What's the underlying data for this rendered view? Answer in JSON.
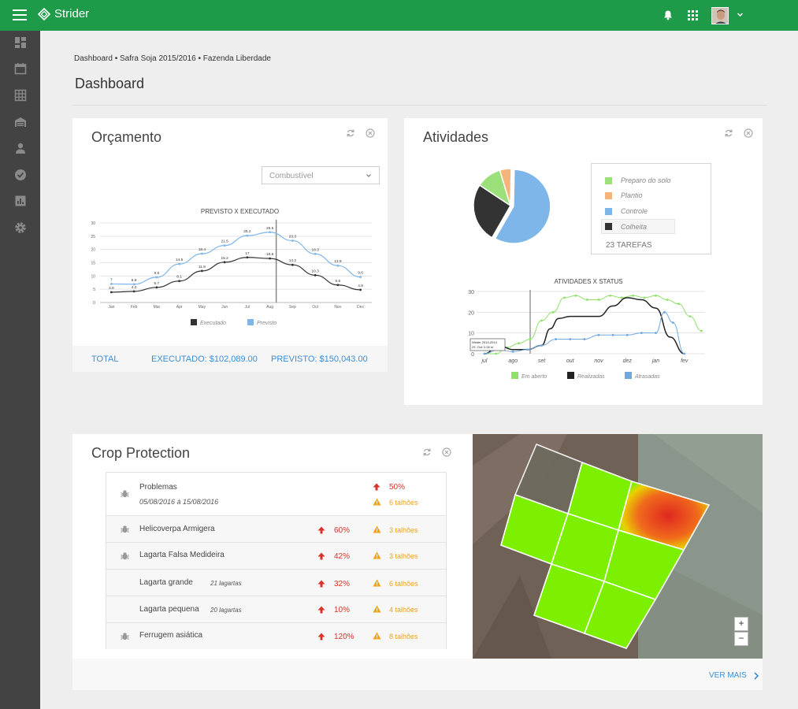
{
  "app": {
    "name": "Strider"
  },
  "breadcrumb": "Dashboard • Safra Soja 2015/2016 • Fazenda Liberdade",
  "page_title": "Dashboard",
  "orcamento": {
    "title": "Orçamento",
    "select_value": "Combustível",
    "total_label": "TOTAL",
    "executado": "EXECUTADO: $102,089.00",
    "previsto": "PREVISTO: $150,043.00",
    "colors": {
      "executado": "#333333",
      "previsto": "#7eb6ea"
    }
  },
  "atividades": {
    "title": "Atividades",
    "legend": [
      {
        "label": "Preparo do solo",
        "color": "#9be07a"
      },
      {
        "label": "Plantio",
        "color": "#f5b57a"
      },
      {
        "label": "Controle",
        "color": "#7eb6ea"
      },
      {
        "label": "Colheita",
        "color": "#333333"
      }
    ],
    "tarefas": "23 TAREFAS",
    "tooltip": [
      "Winter 2013-2014",
      "29. Oct: 0.00 m"
    ]
  },
  "chart_data": [
    {
      "type": "line",
      "title": "PREVISTO X EXECUTADO",
      "categories": [
        "Jan",
        "Feb",
        "Mar",
        "Apr",
        "May",
        "Jun",
        "Jul",
        "Aug",
        "Sep",
        "Oct",
        "Nov",
        "Dec"
      ],
      "series": [
        {
          "name": "Executado",
          "values": [
            3.9,
            4.2,
            5.7,
            8.1,
            11.9,
            15.2,
            17,
            16.6,
            14.2,
            10.3,
            6.6,
            4.8
          ],
          "labels": [
            "3.9",
            "4.2",
            "5.7",
            "8.1",
            "11.9",
            "15.2",
            "17",
            "16.6",
            "14.2",
            "10.3",
            "6.6",
            "4.8"
          ]
        },
        {
          "name": "Previsto",
          "values": [
            7,
            6.9,
            9.5,
            14.5,
            18.4,
            21.5,
            25.2,
            26.5,
            23.3,
            18.3,
            13.9,
            9.6
          ],
          "labels": [
            "7",
            "6.9",
            "9.5",
            "14.5",
            "18.4",
            "21.5",
            "25.2",
            "26.5",
            "23.3",
            "18.3",
            "13.9",
            "9.6"
          ]
        }
      ],
      "yticks": [
        "0",
        "5",
        "10",
        "15",
        "20",
        "25",
        "30"
      ],
      "ylim": [
        0,
        30
      ],
      "grid": true,
      "legend": "bottom-center"
    },
    {
      "type": "pie",
      "slices": [
        {
          "label": "Controle",
          "value": 58
        },
        {
          "label": "Colheita",
          "value": 26
        },
        {
          "label": "Preparo do solo",
          "value": 11
        },
        {
          "label": "Plantio",
          "value": 5
        }
      ]
    },
    {
      "type": "line",
      "title": "ATIVIDADES X STATUS",
      "categories": [
        "jul",
        "ago",
        "set",
        "out",
        "nov",
        "dez",
        "jan",
        "fev"
      ],
      "yticks": [
        "0",
        "10",
        "20",
        "30"
      ],
      "ylim": [
        0,
        30
      ],
      "series": [
        {
          "name": "Em aberto",
          "x": [
            0,
            0.4,
            0.8,
            1.2,
            1.6,
            2.0,
            2.4,
            2.8,
            3.2,
            3.6,
            4.0,
            4.4,
            4.8,
            5.2,
            5.6,
            6.0,
            6.4,
            6.8,
            7.2,
            7.6
          ],
          "values": [
            0,
            0,
            3,
            5,
            7,
            16,
            20,
            27,
            28,
            26,
            26,
            28,
            27,
            28,
            27,
            28,
            26,
            24,
            18,
            11
          ]
        },
        {
          "name": "Realizadas",
          "x": [
            0,
            0.5,
            1.0,
            1.5,
            2.0,
            2.3,
            2.6,
            3.0,
            3.5,
            4.0,
            4.5,
            5.0,
            5.5,
            6.0,
            6.5,
            7.0
          ],
          "values": [
            0,
            4,
            2,
            2,
            4,
            12,
            17,
            18,
            18,
            18,
            23,
            27,
            26,
            22,
            8,
            0
          ]
        },
        {
          "name": "Atrasadas",
          "x": [
            0,
            0.5,
            1.0,
            1.5,
            2.0,
            2.5,
            3.0,
            3.5,
            4.0,
            4.5,
            5.0,
            5.5,
            6.0,
            6.3,
            6.6,
            7.0
          ],
          "values": [
            0,
            2,
            1,
            2,
            4,
            7,
            7,
            7,
            9,
            9,
            9,
            10,
            10,
            20,
            15,
            0
          ]
        }
      ],
      "grid": true,
      "legend": "bottom-center"
    }
  ],
  "crop": {
    "title": "Crop Protection",
    "header": {
      "name": "Problemas",
      "dates": "05/08/2016 à 15/08/2016",
      "pct": "50%",
      "talhoes": "6 talhões"
    },
    "rows": [
      {
        "name": "Helicoverpa Armigera",
        "count": "",
        "pct": "60%",
        "talhoes": "3  talhões",
        "sub": false
      },
      {
        "name": "Lagarta Falsa Medideira",
        "count": "",
        "pct": "42%",
        "talhoes": "3  talhões",
        "sub": false
      },
      {
        "name": "Lagarta grande",
        "count": "21 lagartas",
        "pct": "32%",
        "talhoes": "6 talhões",
        "sub": true
      },
      {
        "name": "Lagarta pequena",
        "count": "20  lagartas",
        "pct": "10%",
        "talhoes": "4 talhões",
        "sub": true
      },
      {
        "name": "Ferrugem asiática",
        "count": "",
        "pct": "120%",
        "talhoes": "8  talhões",
        "sub": false
      }
    ],
    "zoom_in": "+",
    "zoom_out": "−",
    "ver_mais": "VER MAIS"
  }
}
